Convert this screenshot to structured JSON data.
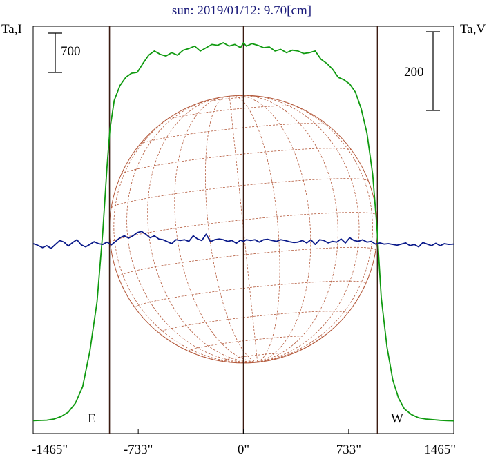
{
  "chart_data": {
    "type": "line",
    "title": "sun: 2019/01/12: 9.70[cm]",
    "left_axis_label": "Ta,I",
    "right_axis_label": "Ta,V",
    "x_ticks": [
      "-1465\"",
      "-733\"",
      "0\"",
      "733\"",
      "1465\""
    ],
    "x_tick_values": [
      -1465,
      -733,
      0,
      733,
      1465
    ],
    "xlim": [
      -1465,
      1465
    ],
    "limb_labels": {
      "east": "E",
      "west": "W"
    },
    "limb_positions": [
      -933,
      0,
      933
    ],
    "scale_bars": [
      {
        "axis": "left",
        "value": "700"
      },
      {
        "axis": "right",
        "value": "200"
      }
    ],
    "disk": {
      "radius_arcsec": 933
    },
    "colors": {
      "stokes_i": "#109a10",
      "stokes_v": "#0a1a8a",
      "disk": "#b45a3c",
      "limbs": "#3a1a10"
    },
    "series": [
      {
        "key": "stokes_i",
        "x": [
          -1465,
          -1420,
          -1370,
          -1320,
          -1270,
          -1220,
          -1170,
          -1120,
          -1070,
          -1020,
          -980,
          -950,
          -930,
          -900,
          -860,
          -820,
          -780,
          -740,
          -700,
          -660,
          -620,
          -580,
          -540,
          -500,
          -460,
          -420,
          -380,
          -340,
          -300,
          -260,
          -220,
          -180,
          -140,
          -100,
          -60,
          -20,
          0,
          20,
          60,
          100,
          140,
          180,
          220,
          260,
          300,
          340,
          380,
          420,
          460,
          500,
          540,
          580,
          620,
          660,
          700,
          740,
          780,
          820,
          860,
          900,
          930,
          960,
          1000,
          1040,
          1080,
          1120,
          1170,
          1220,
          1270,
          1320,
          1370,
          1420,
          1465
        ],
        "y": [
          5,
          8,
          12,
          25,
          55,
          110,
          220,
          420,
          850,
          1450,
          2300,
          3100,
          3550,
          3900,
          4080,
          4180,
          4230,
          4240,
          4350,
          4450,
          4500,
          4460,
          4440,
          4480,
          4450,
          4510,
          4530,
          4560,
          4500,
          4540,
          4580,
          4570,
          4600,
          4560,
          4580,
          4540,
          4600,
          4560,
          4590,
          4570,
          4540,
          4550,
          4500,
          4520,
          4480,
          4510,
          4500,
          4470,
          4480,
          4500,
          4400,
          4350,
          4280,
          4180,
          4150,
          4100,
          4000,
          3800,
          3500,
          3000,
          2350,
          1500,
          900,
          500,
          280,
          150,
          80,
          40,
          25,
          18,
          10,
          5,
          3
        ]
      },
      {
        "key": "stokes_v",
        "x": [
          -1465,
          -1440,
          -1400,
          -1370,
          -1340,
          -1310,
          -1280,
          -1250,
          -1220,
          -1190,
          -1160,
          -1130,
          -1100,
          -1070,
          -1040,
          -1010,
          -980,
          -950,
          -920,
          -890,
          -860,
          -830,
          -800,
          -770,
          -740,
          -710,
          -680,
          -650,
          -620,
          -590,
          -560,
          -530,
          -500,
          -470,
          -440,
          -410,
          -380,
          -350,
          -320,
          -290,
          -260,
          -230,
          -200,
          -170,
          -140,
          -110,
          -80,
          -50,
          -20,
          0,
          20,
          50,
          80,
          110,
          140,
          170,
          200,
          230,
          260,
          290,
          320,
          350,
          380,
          410,
          440,
          470,
          500,
          530,
          560,
          590,
          620,
          650,
          680,
          710,
          740,
          770,
          800,
          830,
          860,
          890,
          920,
          950,
          980,
          1010,
          1040,
          1070,
          1100,
          1130,
          1160,
          1190,
          1220,
          1250,
          1280,
          1310,
          1340,
          1370,
          1400,
          1430,
          1465
        ],
        "y": [
          0,
          -3,
          -10,
          -5,
          -12,
          -2,
          8,
          4,
          -6,
          3,
          10,
          -3,
          -8,
          -2,
          5,
          0,
          -2,
          4,
          -3,
          6,
          15,
          20,
          14,
          20,
          28,
          31,
          24,
          15,
          20,
          12,
          10,
          5,
          0,
          10,
          8,
          10,
          6,
          20,
          12,
          8,
          24,
          5,
          10,
          12,
          10,
          6,
          8,
          1,
          9,
          6,
          10,
          8,
          10,
          4,
          10,
          11,
          8,
          6,
          10,
          8,
          5,
          3,
          4,
          8,
          2,
          10,
          -2,
          10,
          8,
          2,
          6,
          4,
          12,
          2,
          15,
          8,
          6,
          10,
          4,
          6,
          -1,
          2,
          -1,
          0,
          -2,
          -4,
          -1,
          2,
          -5,
          -2,
          -8,
          3,
          -1,
          -5,
          1,
          -5,
          0,
          -2,
          -1
        ]
      }
    ]
  }
}
